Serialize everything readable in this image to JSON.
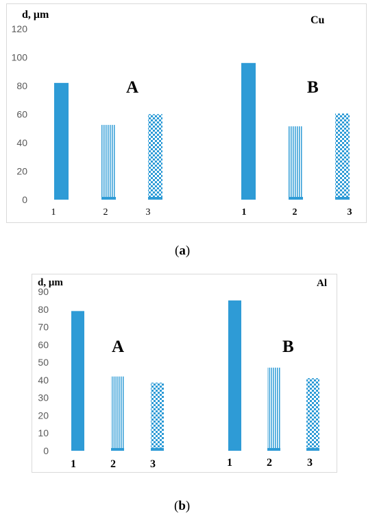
{
  "chart_data": [
    {
      "type": "bar",
      "panel_label": "a",
      "title": "Cu",
      "ylabel": "d, μm",
      "ylim": [
        0,
        120
      ],
      "yticks": [
        0,
        20,
        40,
        60,
        80,
        100,
        120
      ],
      "groups": [
        {
          "name": "A",
          "categories": [
            "1",
            "2",
            "3"
          ],
          "values": [
            82,
            52.5,
            60
          ]
        },
        {
          "name": "B",
          "categories": [
            "1",
            "2",
            "3"
          ],
          "values": [
            96,
            51.5,
            60.5
          ]
        }
      ]
    },
    {
      "type": "bar",
      "panel_label": "b",
      "title": "Al",
      "ylabel": "d, μm",
      "ylim": [
        0,
        90
      ],
      "yticks": [
        0,
        10,
        20,
        30,
        40,
        50,
        60,
        70,
        80,
        90
      ],
      "groups": [
        {
          "name": "A",
          "categories": [
            "1",
            "2",
            "3"
          ],
          "values": [
            79,
            42,
            38.5
          ]
        },
        {
          "name": "B",
          "categories": [
            "1",
            "2",
            "3"
          ],
          "values": [
            85,
            47,
            41
          ]
        }
      ]
    }
  ],
  "colors": {
    "bar": "#2e9bd6",
    "tick": "#595959"
  },
  "captions": {
    "a": "a",
    "b": "b"
  }
}
